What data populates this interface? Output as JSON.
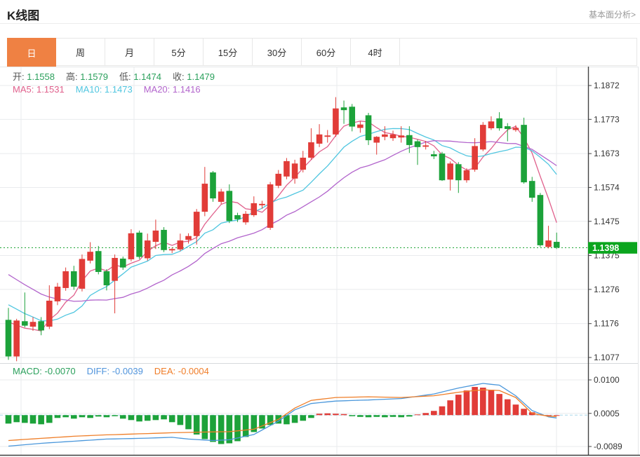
{
  "header": {
    "title": "K线图",
    "link": "基本面分析>"
  },
  "tabs": {
    "items": [
      "日",
      "周",
      "月",
      "5分",
      "15分",
      "30分",
      "60分",
      "4时"
    ],
    "active_index": 0
  },
  "overlay": {
    "ohlc": [
      {
        "label": "开:",
        "value": "1.1558"
      },
      {
        "label": "高:",
        "value": "1.1579"
      },
      {
        "label": "低:",
        "value": "1.1474"
      },
      {
        "label": "收:",
        "value": "1.1479"
      }
    ],
    "ma": [
      {
        "label": "MA5:",
        "value": "1.1531",
        "color": "#e0608c"
      },
      {
        "label": "MA10:",
        "value": "1.1473",
        "color": "#50c6e0"
      },
      {
        "label": "MA20:",
        "value": "1.1416",
        "color": "#b264cc"
      }
    ],
    "macd": [
      {
        "label": "MACD:",
        "value": "-0.0070",
        "color": "#2ba05c"
      },
      {
        "label": "DIFF:",
        "value": "-0.0039",
        "color": "#5094dc"
      },
      {
        "label": "DEA:",
        "value": "-0.0004",
        "color": "#f07d28"
      }
    ]
  },
  "colors": {
    "accent_orange": "#ef8143",
    "up_red": "#e13c38",
    "down_green": "#1ca23a",
    "last_price_badge": "#0ba51e",
    "ohlc_value_green": "#2ba05c",
    "axis_text": "#333333",
    "grid": "#e9ebee",
    "border_light": "#e4e6e8",
    "separator": "#d7d9dc",
    "spine": "#444444",
    "diff_blue": "#4a97db",
    "dea_orange": "#ef7e28",
    "ma5_pink": "#e0608c",
    "ma10_cyan": "#50c6e0",
    "ma20_purple": "#b264cc",
    "zero_dash": "#a8d8ea",
    "price_dotted": "#12a12a"
  },
  "chart_data": {
    "type": "candlestick+macd",
    "title": "K线图 daily candlestick with MA5/MA10/MA20 and MACD sub-chart",
    "legend": [
      "MA5",
      "MA10",
      "MA20",
      "MACD",
      "DIFF",
      "DEA"
    ],
    "grid": true,
    "price_axis": {
      "ticks": [
        "1.1872",
        "1.1773",
        "1.1673",
        "1.1574",
        "1.1475",
        "1.1375",
        "1.1276",
        "1.1176",
        "1.1077"
      ],
      "max": 1.1872,
      "min": 1.1077
    },
    "macd_axis": {
      "ticks": [
        "0.0100",
        "0.0005",
        "-0.0089"
      ],
      "max": 0.01,
      "min": -0.0089
    },
    "last_price": "1.1398",
    "last_price_value": 1.1398,
    "candles": [
      [
        1.1187,
        1.1222,
        1.107,
        1.108
      ],
      [
        1.108,
        1.119,
        1.1066,
        1.1185
      ],
      [
        1.1183,
        1.1267,
        1.1165,
        1.117
      ],
      [
        1.1167,
        1.1195,
        1.1155,
        1.1181
      ],
      [
        1.1183,
        1.1195,
        1.1142,
        1.1156
      ],
      [
        1.1167,
        1.1288,
        1.116,
        1.1243
      ],
      [
        1.1241,
        1.1295,
        1.123,
        1.1284
      ],
      [
        1.128,
        1.134,
        1.1272,
        1.1329
      ],
      [
        1.1329,
        1.1345,
        1.1275,
        1.1284
      ],
      [
        1.1278,
        1.1378,
        1.127,
        1.1365
      ],
      [
        1.136,
        1.1414,
        1.1352,
        1.1386
      ],
      [
        1.1388,
        1.1403,
        1.132,
        1.1327
      ],
      [
        1.1329,
        1.1335,
        1.1273,
        1.1288
      ],
      [
        1.1301,
        1.1378,
        1.1206,
        1.1368
      ],
      [
        1.1366,
        1.1372,
        1.1333,
        1.134
      ],
      [
        1.1364,
        1.1452,
        1.1358,
        1.144
      ],
      [
        1.1442,
        1.1448,
        1.1365,
        1.1371
      ],
      [
        1.1367,
        1.1439,
        1.136,
        1.1419
      ],
      [
        1.1415,
        1.148,
        1.1394,
        1.1448
      ],
      [
        1.145,
        1.1458,
        1.1385,
        1.1391
      ],
      [
        1.139,
        1.1398,
        1.1382,
        1.1394
      ],
      [
        1.1393,
        1.1439,
        1.1388,
        1.1419
      ],
      [
        1.1421,
        1.144,
        1.141,
        1.1432
      ],
      [
        1.1432,
        1.1511,
        1.1407,
        1.1503
      ],
      [
        1.1503,
        1.1634,
        1.149,
        1.1585
      ],
      [
        1.1618,
        1.1622,
        1.1532,
        1.1542
      ],
      [
        1.1532,
        1.157,
        1.1525,
        1.1562
      ],
      [
        1.1564,
        1.1583,
        1.147,
        1.1476
      ],
      [
        1.1493,
        1.15,
        1.1473,
        1.1481
      ],
      [
        1.1472,
        1.1505,
        1.1465,
        1.1497
      ],
      [
        1.1493,
        1.1548,
        1.1488,
        1.1528
      ],
      [
        1.1522,
        1.1535,
        1.1512,
        1.1526
      ],
      [
        1.1456,
        1.159,
        1.145,
        1.1583
      ],
      [
        1.1579,
        1.1625,
        1.1572,
        1.1614
      ],
      [
        1.1606,
        1.166,
        1.1598,
        1.1651
      ],
      [
        1.16,
        1.1655,
        1.1585,
        1.1644
      ],
      [
        1.1626,
        1.1681,
        1.1618,
        1.1661
      ],
      [
        1.1661,
        1.1747,
        1.1655,
        1.1706
      ],
      [
        1.1702,
        1.1759,
        1.1692,
        1.1729
      ],
      [
        1.1722,
        1.1742,
        1.1705,
        1.1726
      ],
      [
        1.1729,
        1.1838,
        1.1722,
        1.1805
      ],
      [
        1.1808,
        1.1828,
        1.176,
        1.18
      ],
      [
        1.181,
        1.1818,
        1.1738,
        1.1752
      ],
      [
        1.1748,
        1.1767,
        1.1734,
        1.1758
      ],
      [
        1.1785,
        1.1792,
        1.1698,
        1.1712
      ],
      [
        1.1705,
        1.1724,
        1.167,
        1.1722
      ],
      [
        1.1722,
        1.1753,
        1.1712,
        1.1729
      ],
      [
        1.1718,
        1.174,
        1.171,
        1.1729
      ],
      [
        1.172,
        1.1753,
        1.1705,
        1.1726
      ],
      [
        1.1727,
        1.1753,
        1.1675,
        1.1698
      ],
      [
        1.1709,
        1.1714,
        1.164,
        1.1692
      ],
      [
        1.1693,
        1.171,
        1.1685,
        1.1697
      ],
      [
        1.1671,
        1.1681,
        1.1657,
        1.1665
      ],
      [
        1.1673,
        1.1678,
        1.1593,
        1.1595
      ],
      [
        1.1597,
        1.165,
        1.1565,
        1.1644
      ],
      [
        1.1642,
        1.1648,
        1.1558,
        1.1595
      ],
      [
        1.1595,
        1.163,
        1.1588,
        1.1624
      ],
      [
        1.1626,
        1.1718,
        1.162,
        1.1695
      ],
      [
        1.1685,
        1.1765,
        1.168,
        1.1757
      ],
      [
        1.1747,
        1.1782,
        1.1742,
        1.1767
      ],
      [
        1.1776,
        1.1794,
        1.174,
        1.1747
      ],
      [
        1.1753,
        1.1762,
        1.1709,
        1.1745
      ],
      [
        1.1742,
        1.1756,
        1.1737,
        1.1748
      ],
      [
        1.1757,
        1.1778,
        1.1585,
        1.1589
      ],
      [
        1.1593,
        1.1605,
        1.1532,
        1.1544
      ],
      [
        1.1552,
        1.1558,
        1.14,
        1.1405
      ],
      [
        1.14,
        1.1462,
        1.1396,
        1.1419
      ],
      [
        1.1415,
        1.1442,
        1.1394,
        1.1398
      ]
    ],
    "ma_seed": [
      1.15,
      1.1483,
      1.1466,
      1.145,
      1.1433,
      1.1416,
      1.1399,
      1.1382,
      1.1366,
      1.1349,
      1.1332,
      1.1315,
      1.1298,
      1.1282,
      1.1265,
      1.1248,
      1.1231,
      1.1214,
      1.1198,
      1.118
    ],
    "macd_hist": [
      -0.0024,
      -0.002,
      -0.0022,
      -0.0024,
      -0.0026,
      -0.0022,
      -0.0008,
      -0.0006,
      -0.001,
      -0.0006,
      -0.0008,
      -0.0004,
      -0.0006,
      -0.0003,
      -0.001,
      -0.0014,
      -0.0018,
      -0.0016,
      -0.0014,
      -0.0012,
      -0.002,
      -0.0028,
      -0.004,
      -0.0055,
      -0.0068,
      -0.0076,
      -0.0082,
      -0.008,
      -0.0074,
      -0.0062,
      -0.0048,
      -0.0038,
      -0.0028,
      -0.0024,
      -0.0026,
      -0.0022,
      -0.0016,
      -0.0008,
      0.0004,
      0.0005,
      0.0004,
      0.0003,
      -0.0003,
      -0.0005,
      -0.0006,
      -0.0005,
      -0.0006,
      -0.0005,
      -0.0006,
      -0.0004,
      0.0002,
      0.0006,
      0.0012,
      0.0025,
      0.0042,
      0.0058,
      0.007,
      0.008,
      0.0078,
      0.0072,
      0.006,
      0.0045,
      0.003,
      0.0018,
      0.0008,
      0.0002,
      0.0,
      0.0
    ],
    "diff": [
      -0.0088,
      -0.0086,
      -0.0084,
      -0.0082,
      -0.008,
      -0.00785,
      -0.0077,
      -0.00755,
      -0.0074,
      -0.00725,
      -0.0071,
      -0.00695,
      -0.0068,
      -0.00675,
      -0.0067,
      -0.00665,
      -0.0066,
      -0.00653,
      -0.00645,
      -0.00638,
      -0.0063,
      -0.00655,
      -0.0068,
      -0.00693,
      -0.00707,
      -0.0072,
      -0.0071,
      -0.007,
      -0.0065,
      -0.006,
      -0.0055,
      -0.00423,
      -0.00297,
      -0.0017,
      -0.0001,
      0.0015,
      0.0024,
      0.0033,
      0.00353,
      0.00377,
      0.004,
      0.00408,
      0.00415,
      0.00423,
      0.0043,
      0.0044,
      0.0045,
      0.0046,
      0.0047,
      0.00503,
      0.00535,
      0.00568,
      0.006,
      0.00657,
      0.00713,
      0.0077,
      0.00813,
      0.00857,
      0.009,
      0.00875,
      0.0085,
      0.007,
      0.0055,
      0.0034,
      0.0013,
      0.0004,
      -0.0005,
      -0.0008
    ],
    "dea": [
      -0.0072,
      -0.00705,
      -0.0069,
      -0.00675,
      -0.0066,
      -0.00645,
      -0.0063,
      -0.00615,
      -0.006,
      -0.0059,
      -0.0058,
      -0.0057,
      -0.0056,
      -0.00553,
      -0.00545,
      -0.00538,
      -0.0053,
      -0.00523,
      -0.00515,
      -0.00508,
      -0.005,
      -0.00495,
      -0.0049,
      -0.00485,
      -0.0048,
      -0.00477,
      -0.00473,
      -0.0047,
      -0.00447,
      -0.00423,
      -0.004,
      -0.00307,
      -0.00213,
      -0.0012,
      0.0004,
      0.002,
      0.0031,
      0.0042,
      0.00447,
      0.00473,
      0.005,
      0.00505,
      0.0051,
      0.00515,
      0.0052,
      0.00515,
      0.0051,
      0.00505,
      0.005,
      0.00513,
      0.00525,
      0.00538,
      0.0055,
      0.00583,
      0.00617,
      0.0065,
      0.00673,
      0.00697,
      0.0072,
      0.0071,
      0.007,
      0.006,
      0.005,
      0.00275,
      0.0005,
      0.0001,
      -0.0003,
      -0.0004
    ]
  }
}
